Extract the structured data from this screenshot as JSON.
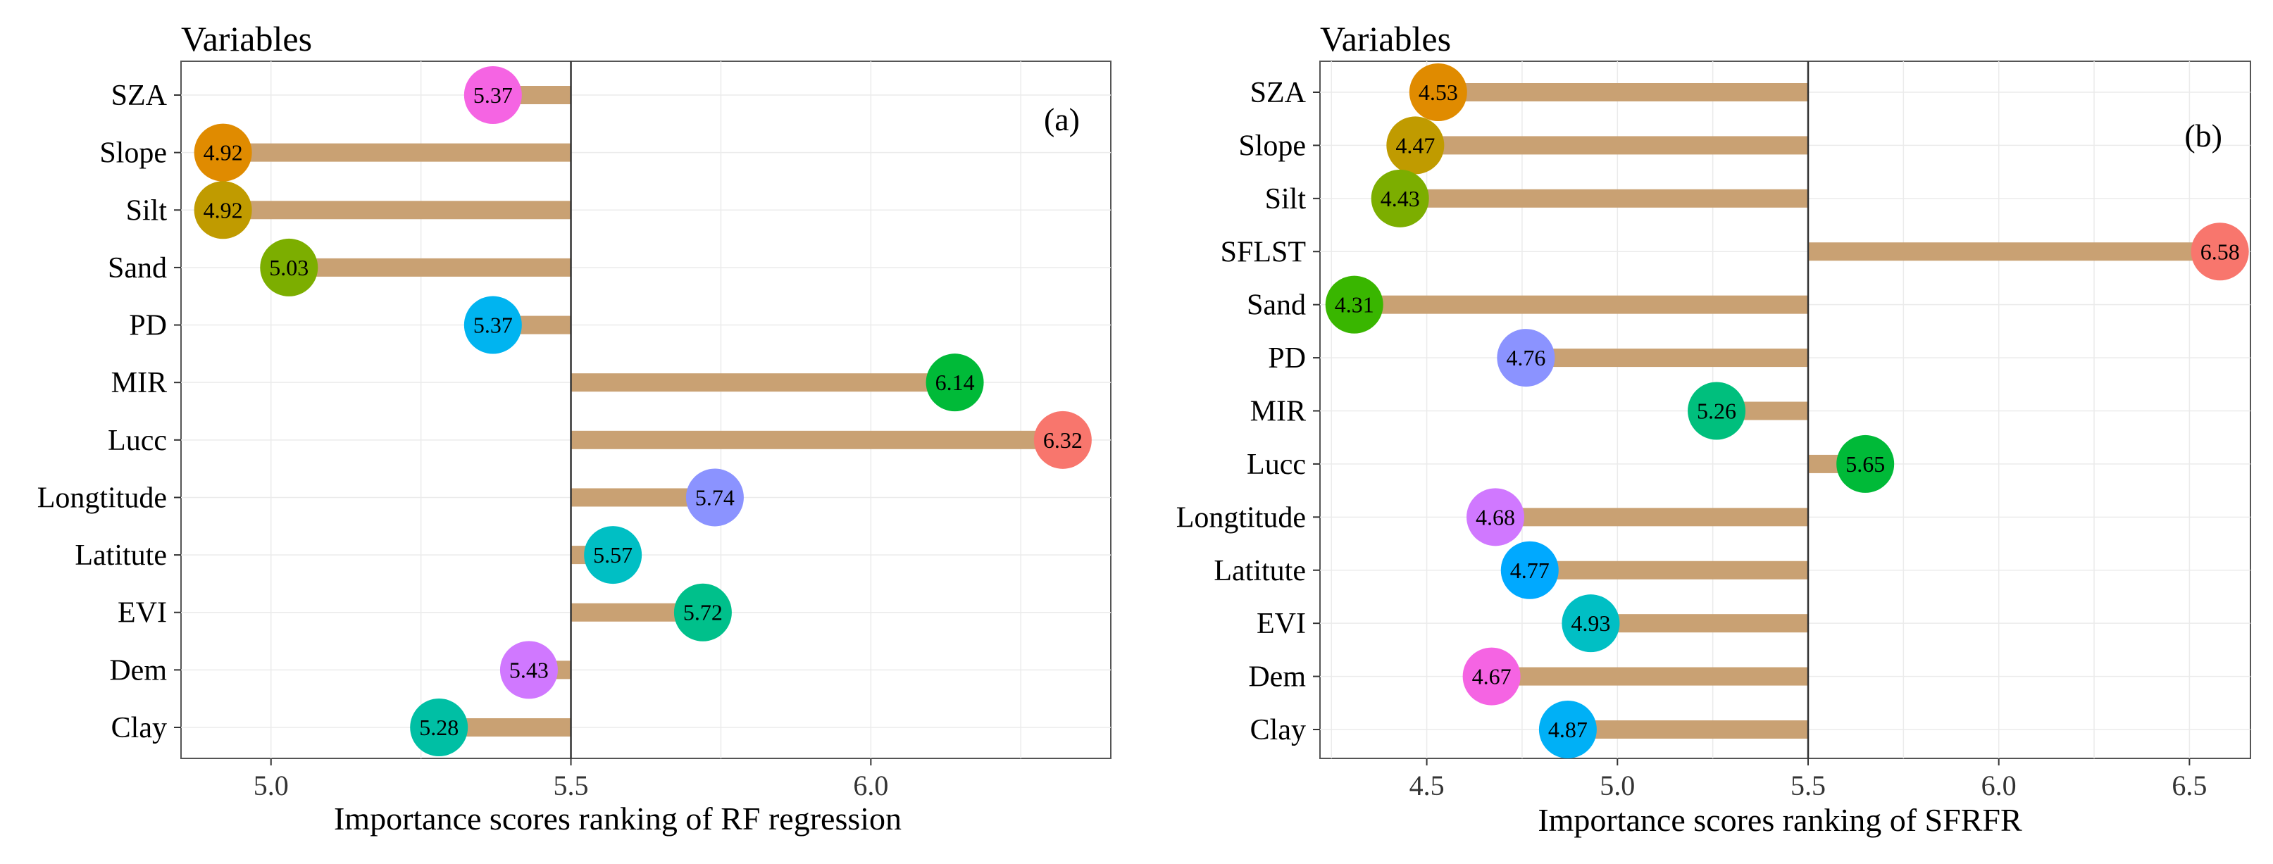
{
  "chart_data": [
    {
      "type": "lollipop-bar",
      "panel_label": "(a)",
      "legend_title": "Variables",
      "xlabel": "Importance scores ranking of RF regression",
      "ylabel": "",
      "baseline": 5.5,
      "xlim": [
        4.85,
        6.4
      ],
      "xticks": [
        "5.0",
        "5.5",
        "6.0"
      ],
      "grid": true,
      "categories": [
        "SZA",
        "Slope",
        "Silt",
        "Sand",
        "PD",
        "MIR",
        "Lucc",
        "Longtitude",
        "Latitute",
        "EVI",
        "Dem",
        "Clay"
      ],
      "values": [
        5.37,
        4.92,
        4.92,
        5.03,
        5.37,
        6.14,
        6.32,
        5.74,
        5.57,
        5.72,
        5.43,
        5.28
      ],
      "value_labels": [
        "5.37",
        "4.92",
        "4.92",
        "5.03",
        "5.37",
        "6.14",
        "6.32",
        "5.74",
        "5.57",
        "5.72",
        "5.43",
        "5.28"
      ],
      "colors": [
        "#F564E3",
        "#E08B00",
        "#C09B00",
        "#7CAE00",
        "#00B4F0",
        "#00BA38",
        "#F8766D",
        "#8B93FF",
        "#00BFC4",
        "#00C08B",
        "#D078FF",
        "#00BFA4"
      ]
    },
    {
      "type": "lollipop-bar",
      "panel_label": "(b)",
      "legend_title": "Variables",
      "xlabel": "Importance scores ranking of SFRFR",
      "ylabel": "",
      "baseline": 5.5,
      "xlim": [
        4.22,
        6.66
      ],
      "xticks": [
        "4.5",
        "5.0",
        "5.5",
        "6.0",
        "6.5"
      ],
      "grid": true,
      "categories": [
        "SZA",
        "Slope",
        "Silt",
        "SFLST",
        "Sand",
        "PD",
        "MIR",
        "Lucc",
        "Longtitude",
        "Latitute",
        "EVI",
        "Dem",
        "Clay"
      ],
      "values": [
        4.53,
        4.47,
        4.43,
        6.58,
        4.31,
        4.76,
        5.26,
        5.65,
        4.68,
        4.77,
        4.93,
        4.67,
        4.87
      ],
      "value_labels": [
        "4.53",
        "4.47",
        "4.43",
        "6.58",
        "4.31",
        "4.76",
        "5.26",
        "5.65",
        "4.68",
        "4.77",
        "4.93",
        "4.67",
        "4.87"
      ],
      "colors": [
        "#E08B00",
        "#C09B00",
        "#7CAE00",
        "#F8766D",
        "#39B600",
        "#8B93FF",
        "#00BF7D",
        "#00BA38",
        "#D078FF",
        "#00A9FF",
        "#00BFC4",
        "#F564E3",
        "#00B0F6"
      ]
    }
  ]
}
